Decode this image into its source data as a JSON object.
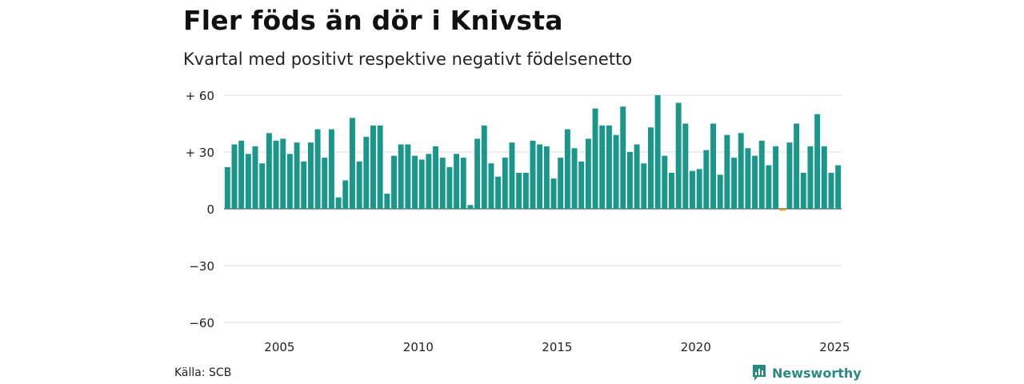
{
  "title": "Fler föds än dör i Knivsta",
  "subtitle": "Kvartal med positivt respektive negativt födelsenetto",
  "source": "Källa: SCB",
  "brand": "Newsworthy",
  "colors": {
    "positive": "#1a968a",
    "negative": "#e0a100",
    "grid": "#dddddd",
    "brand": "#2a8a83"
  },
  "chart_data": {
    "type": "bar",
    "start": "2003 Q1",
    "interval": "quarter",
    "ylim": [
      -65,
      62
    ],
    "yticks": [
      {
        "value": 60,
        "label": "+ 60"
      },
      {
        "value": 30,
        "label": "+ 30"
      },
      {
        "value": 0,
        "label": "0"
      },
      {
        "value": -30,
        "label": "−30"
      },
      {
        "value": -60,
        "label": "−60"
      }
    ],
    "xticks": [
      "2005",
      "2010",
      "2015",
      "2020",
      "2025"
    ],
    "grid": true,
    "values": [
      22,
      34,
      36,
      29,
      33,
      24,
      40,
      36,
      37,
      29,
      35,
      25,
      35,
      42,
      27,
      42,
      6,
      15,
      48,
      25,
      38,
      44,
      44,
      8,
      28,
      34,
      34,
      28,
      26,
      29,
      33,
      27,
      22,
      29,
      27,
      2,
      37,
      44,
      24,
      17,
      27,
      35,
      19,
      19,
      36,
      34,
      33,
      16,
      27,
      42,
      32,
      25,
      37,
      53,
      44,
      44,
      39,
      54,
      30,
      34,
      24,
      43,
      60,
      28,
      19,
      56,
      45,
      20,
      21,
      31,
      45,
      18,
      39,
      27,
      40,
      32,
      28,
      36,
      23,
      33,
      -1,
      35,
      45,
      19,
      33,
      50,
      33,
      19,
      23
    ]
  }
}
